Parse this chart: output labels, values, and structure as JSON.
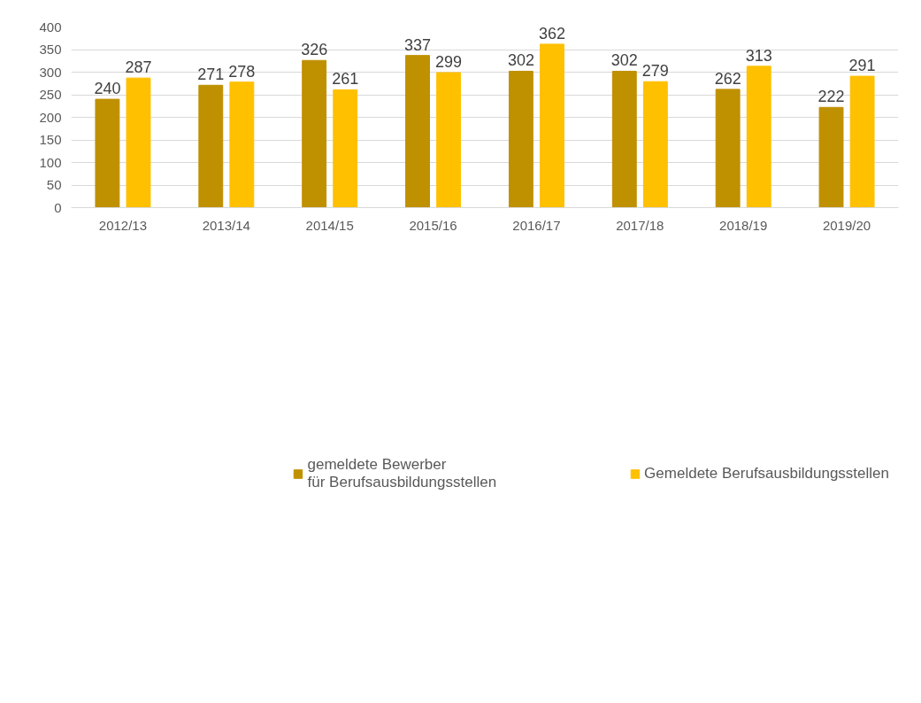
{
  "chart_data": {
    "type": "bar",
    "categories": [
      "2012/13",
      "2013/14",
      "2014/15",
      "2015/16",
      "2016/17",
      "2017/18",
      "2018/19",
      "2019/20"
    ],
    "series": [
      {
        "name": "gemeldete Bewerber\nfür Berufsausbildungsstellen",
        "color": "#bf9000",
        "values": [
          240,
          271,
          326,
          337,
          302,
          302,
          262,
          222
        ]
      },
      {
        "name": "Gemeldete Berufsausbildungsstellen",
        "color": "#ffc000",
        "values": [
          287,
          278,
          261,
          299,
          362,
          279,
          313,
          291
        ]
      }
    ],
    "ylim": [
      0,
      400
    ],
    "yticks": [
      0,
      50,
      100,
      150,
      200,
      250,
      300,
      350,
      400
    ],
    "grid": "y",
    "legend": "bottom",
    "data_labels": true
  }
}
